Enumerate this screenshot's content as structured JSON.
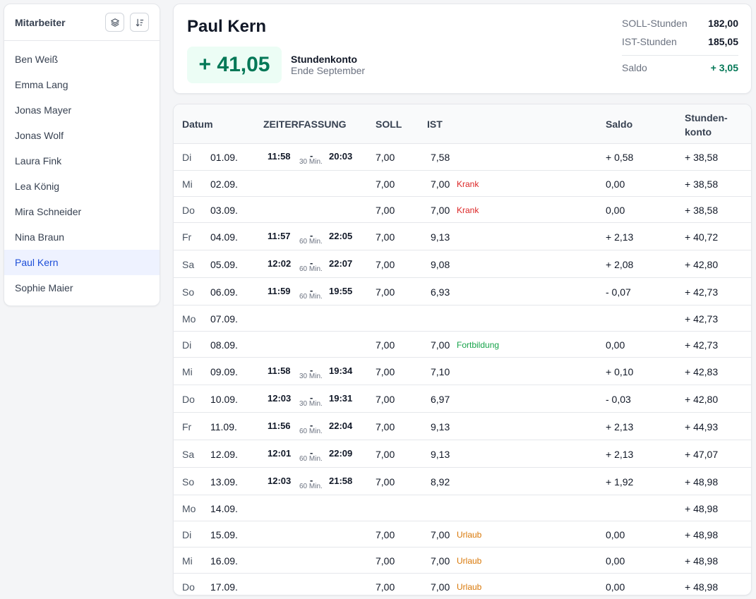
{
  "sidebar": {
    "title": "Mitarbeiter",
    "employees": [
      "Ben Weiß",
      "Emma Lang",
      "Jonas Mayer",
      "Jonas Wolf",
      "Laura Fink",
      "Lea König",
      "Mira Schneider",
      "Nina Braun",
      "Paul Kern",
      "Sophie Maier"
    ],
    "active": "Paul Kern",
    "layers_icon": "layers-icon",
    "sort_icon": "sort-icon"
  },
  "summary": {
    "name": "Paul Kern",
    "balance": "+ 41,05",
    "account_label": "Stundenkonto",
    "account_sub": "Ende September",
    "soll_label": "SOLL-Stunden",
    "soll_value": "182,00",
    "ist_label": "IST-Stunden",
    "ist_value": "185,05",
    "saldo_label": "Saldo",
    "saldo_value": "+ 3,05"
  },
  "table": {
    "headers": {
      "datum": "Datum",
      "zeit": "ZEITERFASSUNG",
      "soll": "SOLL",
      "ist": "IST",
      "saldo": "Saldo",
      "konto_1": "Stunden-",
      "konto_2": "konto"
    },
    "rows": [
      {
        "day": "Di",
        "date": "01.09.",
        "start": "11:58",
        "pause": "30 Min.",
        "end": "20:03",
        "soll": "7,00",
        "ist": "7,58",
        "tag": "",
        "saldo": "+ 0,58",
        "konto": "+ 38,58"
      },
      {
        "day": "Mi",
        "date": "02.09.",
        "start": "",
        "pause": "",
        "end": "",
        "soll": "7,00",
        "ist": "7,00",
        "tag": "Krank",
        "saldo": "0,00",
        "konto": "+ 38,58"
      },
      {
        "day": "Do",
        "date": "03.09.",
        "start": "",
        "pause": "",
        "end": "",
        "soll": "7,00",
        "ist": "7,00",
        "tag": "Krank",
        "saldo": "0,00",
        "konto": "+ 38,58"
      },
      {
        "day": "Fr",
        "date": "04.09.",
        "start": "11:57",
        "pause": "60 Min.",
        "end": "22:05",
        "soll": "7,00",
        "ist": "9,13",
        "tag": "",
        "saldo": "+ 2,13",
        "konto": "+ 40,72"
      },
      {
        "day": "Sa",
        "date": "05.09.",
        "start": "12:02",
        "pause": "60 Min.",
        "end": "22:07",
        "soll": "7,00",
        "ist": "9,08",
        "tag": "",
        "saldo": "+ 2,08",
        "konto": "+ 42,80"
      },
      {
        "day": "So",
        "date": "06.09.",
        "start": "11:59",
        "pause": "60 Min.",
        "end": "19:55",
        "soll": "7,00",
        "ist": "6,93",
        "tag": "",
        "saldo": "- 0,07",
        "konto": "+ 42,73"
      },
      {
        "day": "Mo",
        "date": "07.09.",
        "start": "",
        "pause": "",
        "end": "",
        "soll": "",
        "ist": "",
        "tag": "",
        "saldo": "",
        "konto": "+ 42,73"
      },
      {
        "day": "Di",
        "date": "08.09.",
        "start": "",
        "pause": "",
        "end": "",
        "soll": "7,00",
        "ist": "7,00",
        "tag": "Fortbildung",
        "saldo": "0,00",
        "konto": "+ 42,73"
      },
      {
        "day": "Mi",
        "date": "09.09.",
        "start": "11:58",
        "pause": "30 Min.",
        "end": "19:34",
        "soll": "7,00",
        "ist": "7,10",
        "tag": "",
        "saldo": "+ 0,10",
        "konto": "+ 42,83"
      },
      {
        "day": "Do",
        "date": "10.09.",
        "start": "12:03",
        "pause": "30 Min.",
        "end": "19:31",
        "soll": "7,00",
        "ist": "6,97",
        "tag": "",
        "saldo": "- 0,03",
        "konto": "+ 42,80"
      },
      {
        "day": "Fr",
        "date": "11.09.",
        "start": "11:56",
        "pause": "60 Min.",
        "end": "22:04",
        "soll": "7,00",
        "ist": "9,13",
        "tag": "",
        "saldo": "+ 2,13",
        "konto": "+ 44,93"
      },
      {
        "day": "Sa",
        "date": "12.09.",
        "start": "12:01",
        "pause": "60 Min.",
        "end": "22:09",
        "soll": "7,00",
        "ist": "9,13",
        "tag": "",
        "saldo": "+ 2,13",
        "konto": "+ 47,07"
      },
      {
        "day": "So",
        "date": "13.09.",
        "start": "12:03",
        "pause": "60 Min.",
        "end": "21:58",
        "soll": "7,00",
        "ist": "8,92",
        "tag": "",
        "saldo": "+ 1,92",
        "konto": "+ 48,98"
      },
      {
        "day": "Mo",
        "date": "14.09.",
        "start": "",
        "pause": "",
        "end": "",
        "soll": "",
        "ist": "",
        "tag": "",
        "saldo": "",
        "konto": "+ 48,98"
      },
      {
        "day": "Di",
        "date": "15.09.",
        "start": "",
        "pause": "",
        "end": "",
        "soll": "7,00",
        "ist": "7,00",
        "tag": "Urlaub",
        "saldo": "0,00",
        "konto": "+ 48,98"
      },
      {
        "day": "Mi",
        "date": "16.09.",
        "start": "",
        "pause": "",
        "end": "",
        "soll": "7,00",
        "ist": "7,00",
        "tag": "Urlaub",
        "saldo": "0,00",
        "konto": "+ 48,98"
      },
      {
        "day": "Do",
        "date": "17.09.",
        "start": "",
        "pause": "",
        "end": "",
        "soll": "7,00",
        "ist": "7,00",
        "tag": "Urlaub",
        "saldo": "0,00",
        "konto": "+ 48,98"
      }
    ]
  }
}
